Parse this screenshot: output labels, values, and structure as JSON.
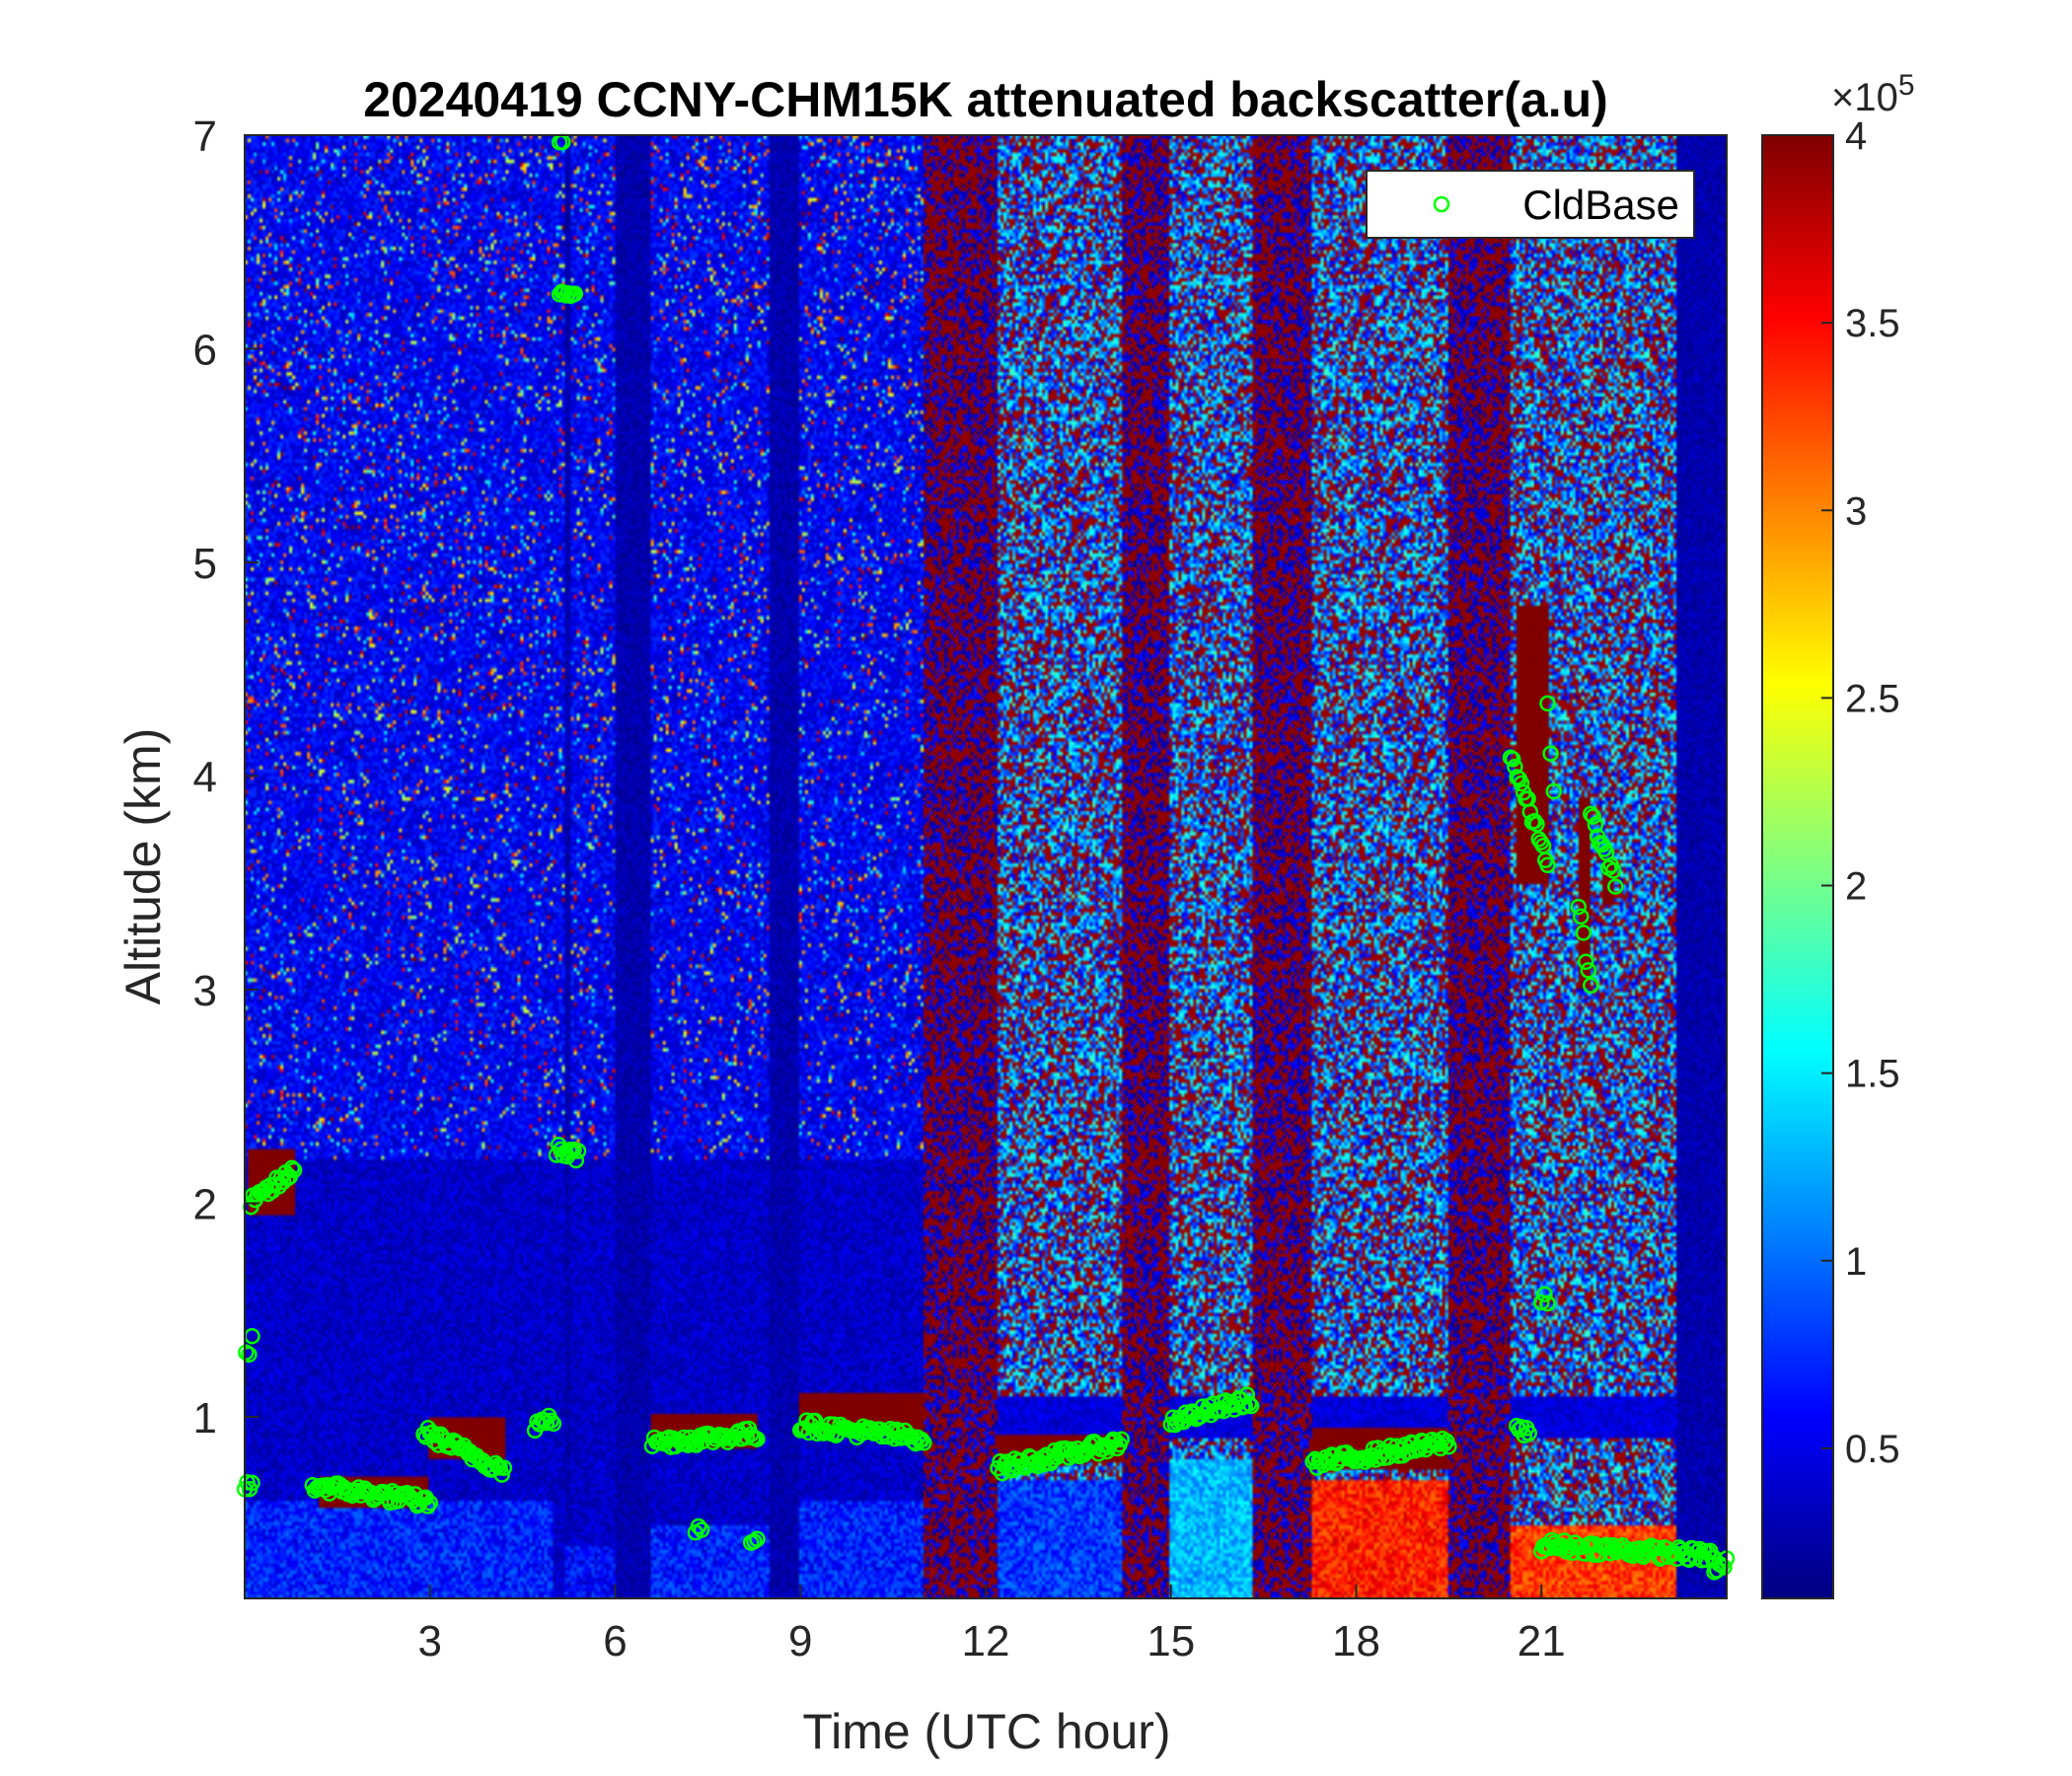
{
  "chart_data": {
    "type": "heatmap",
    "title": "20240419 CCNY-CHM15K attenuated backscatter(a.u)",
    "xlabel": "Time (UTC hour)",
    "ylabel": "Altitude (km)",
    "xlim": [
      0,
      24
    ],
    "ylim": [
      0.15,
      7
    ],
    "xticks": [
      3,
      6,
      9,
      12,
      15,
      18,
      21
    ],
    "yticks": [
      1,
      2,
      3,
      4,
      5,
      6,
      7
    ],
    "colorbar": {
      "range": [
        0.1,
        4
      ],
      "ticks": [
        0.5,
        1,
        1.5,
        2,
        2.5,
        3,
        3.5,
        4
      ],
      "tick_labels": [
        "0.5",
        "1",
        "1.5",
        "2",
        "2.5",
        "3",
        "3.5",
        "4"
      ],
      "exponent_label": "×10",
      "exponent_power": "5",
      "colormap": "jet"
    },
    "legend": {
      "placement": "top-right",
      "entries": [
        {
          "name": "CldBase",
          "marker": "circle",
          "color": "#00ff00"
        }
      ]
    },
    "grid": false,
    "background_regimes": [
      {
        "x": [
          0,
          5.2
        ],
        "regime": "clear-noise"
      },
      {
        "x": [
          5.2,
          5.3
        ],
        "regime": "dark"
      },
      {
        "x": [
          5.3,
          6.0
        ],
        "regime": "clear-noise"
      },
      {
        "x": [
          6.0,
          6.6
        ],
        "regime": "dark"
      },
      {
        "x": [
          6.6,
          8.5
        ],
        "regime": "clear-noise"
      },
      {
        "x": [
          8.5,
          9.0
        ],
        "regime": "dark"
      },
      {
        "x": [
          9.0,
          11.0
        ],
        "regime": "clear-noise"
      },
      {
        "x": [
          11.0,
          12.2
        ],
        "regime": "red-noise"
      },
      {
        "x": [
          12.2,
          14.2
        ],
        "regime": "mixed-noise"
      },
      {
        "x": [
          14.2,
          15.0
        ],
        "regime": "red-noise"
      },
      {
        "x": [
          15.0,
          16.3
        ],
        "regime": "mixed-noise"
      },
      {
        "x": [
          16.3,
          17.3
        ],
        "regime": "red-noise"
      },
      {
        "x": [
          17.3,
          19.5
        ],
        "regime": "mixed-noise"
      },
      {
        "x": [
          19.5,
          20.5
        ],
        "regime": "red-noise"
      },
      {
        "x": [
          20.5,
          23.2
        ],
        "regime": "mixed-noise"
      },
      {
        "x": [
          23.2,
          24.0
        ],
        "regime": "dark"
      }
    ],
    "boundary_layer_segments": [
      {
        "x": [
          0,
          5.0
        ],
        "top": 0.6,
        "value": 0.7
      },
      {
        "x": [
          5.2,
          6.0
        ],
        "top": 0.4,
        "value": 0.6
      },
      {
        "x": [
          6.6,
          8.5
        ],
        "top": 0.5,
        "value": 0.7
      },
      {
        "x": [
          9.0,
          11.0
        ],
        "top": 0.6,
        "value": 0.7
      },
      {
        "x": [
          12.2,
          14.2
        ],
        "top": 0.7,
        "value": 0.8
      },
      {
        "x": [
          15.0,
          16.3
        ],
        "top": 0.8,
        "value": 1.3
      },
      {
        "x": [
          17.3,
          19.5
        ],
        "top": 0.7,
        "value": 3.4
      },
      {
        "x": [
          20.5,
          23.2
        ],
        "top": 0.5,
        "value": 3.3
      }
    ],
    "cloud_layers": [
      {
        "x": [
          0.05,
          0.8
        ],
        "base": 1.95,
        "top": 2.25
      },
      {
        "x": [
          1.2,
          3.0
        ],
        "base": 0.58,
        "top": 0.72
      },
      {
        "x": [
          3.0,
          4.2
        ],
        "base": 0.8,
        "top": 1.0
      },
      {
        "x": [
          6.6,
          8.3
        ],
        "base": 0.85,
        "top": 1.02
      },
      {
        "x": [
          9.0,
          11.0
        ],
        "base": 0.92,
        "top": 1.12
      },
      {
        "x": [
          12.2,
          14.2
        ],
        "base": 0.78,
        "top": 0.92
      },
      {
        "x": [
          17.3,
          19.5
        ],
        "base": 0.75,
        "top": 0.95
      },
      {
        "x": [
          20.6,
          21.1
        ],
        "base": 3.5,
        "top": 4.8
      },
      {
        "x": [
          21.6,
          21.8
        ],
        "base": 3.0,
        "top": 3.9
      },
      {
        "x": [
          22.0,
          22.2
        ],
        "base": 3.4,
        "top": 3.6
      }
    ],
    "cloud_base_points": [
      {
        "x": [
          0.0,
          0.12
        ],
        "y": [
          0.66,
          0.68
        ]
      },
      {
        "x": [
          0.02,
          0.12
        ],
        "y": [
          1.28,
          1.36
        ]
      },
      {
        "x": [
          0.1,
          0.8
        ],
        "y": [
          2.0,
          2.15
        ]
      },
      {
        "x": [
          1.1,
          3.0
        ],
        "y": [
          0.68,
          0.6
        ]
      },
      {
        "x": [
          2.9,
          4.2
        ],
        "y": [
          0.93,
          0.75
        ]
      },
      {
        "x": [
          4.7,
          5.0
        ],
        "y": [
          0.96,
          0.99
        ]
      },
      {
        "x": [
          5.05,
          5.4
        ],
        "y": [
          2.25,
          2.22
        ]
      },
      {
        "x": [
          5.1,
          5.35
        ],
        "y": [
          6.27,
          6.27
        ]
      },
      {
        "x": [
          5.1,
          5.15
        ],
        "y": [
          6.98,
          6.98
        ]
      },
      {
        "x": [
          6.6,
          8.3
        ],
        "y": [
          0.88,
          0.92
        ]
      },
      {
        "x": [
          7.3,
          7.4
        ],
        "y": [
          0.48,
          0.48
        ]
      },
      {
        "x": [
          8.2,
          8.3
        ],
        "y": [
          0.43,
          0.43
        ]
      },
      {
        "x": [
          9.0,
          11.0
        ],
        "y": [
          0.96,
          0.9
        ]
      },
      {
        "x": [
          12.2,
          14.2
        ],
        "y": [
          0.76,
          0.88
        ]
      },
      {
        "x": [
          15.0,
          16.3
        ],
        "y": [
          0.98,
          1.08
        ]
      },
      {
        "x": [
          17.3,
          19.5
        ],
        "y": [
          0.78,
          0.88
        ]
      },
      {
        "x": [
          20.6,
          20.8
        ],
        "y": [
          0.94,
          0.94
        ]
      },
      {
        "x": [
          20.5,
          21.1
        ],
        "y": [
          4.1,
          3.6
        ]
      },
      {
        "x": [
          21.0,
          21.1
        ],
        "y": [
          1.55,
          1.55
        ]
      },
      {
        "x": [
          21.1,
          21.2
        ],
        "y": [
          4.32,
          3.9
        ]
      },
      {
        "x": [
          21.6,
          21.8
        ],
        "y": [
          3.4,
          3.0
        ]
      },
      {
        "x": [
          21.8,
          22.2
        ],
        "y": [
          3.82,
          3.5
        ]
      },
      {
        "x": [
          21.0,
          23.8
        ],
        "y": [
          0.4,
          0.35
        ]
      },
      {
        "x": [
          23.8,
          24.0
        ],
        "y": [
          0.27,
          0.32
        ]
      }
    ]
  }
}
